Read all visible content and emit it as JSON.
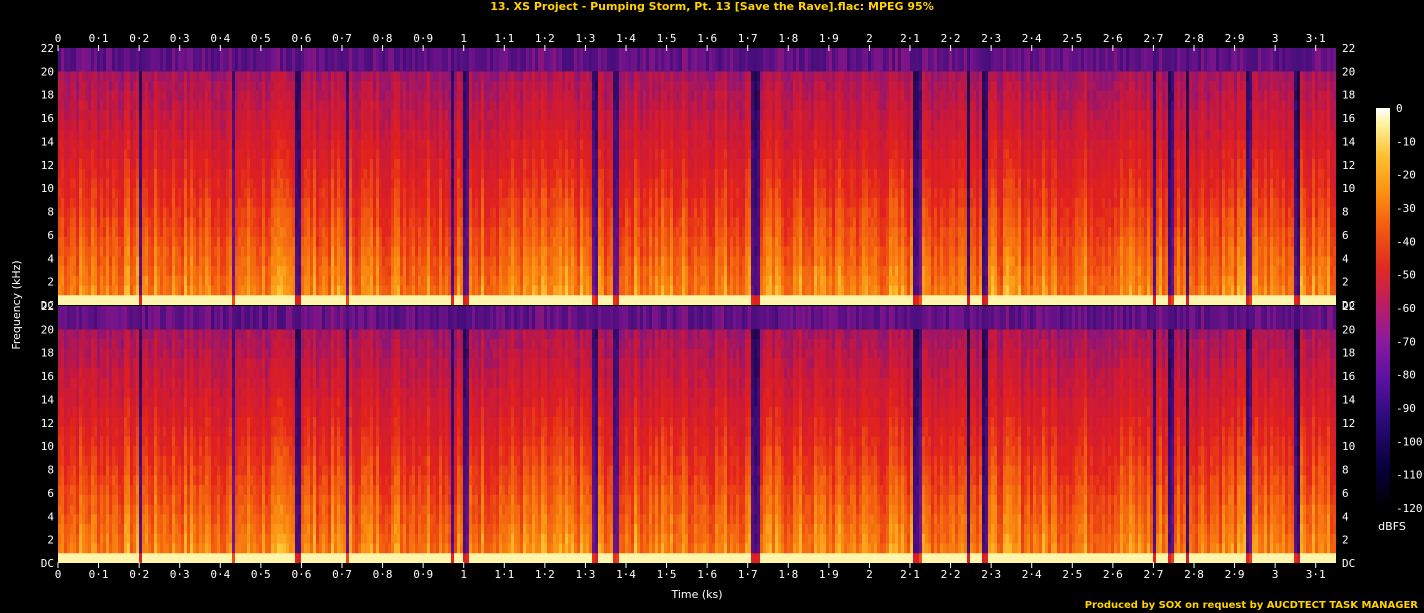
{
  "title": "13. XS Project - Pumping Storm, Pt. 13 [Save the Rave].flac: MPEG 95%",
  "credit": "Produced by SOX on request by AUCDTECT TASK MANAGER",
  "chart_data": {
    "type": "heatmap",
    "title": "13. XS Project - Pumping Storm, Pt. 13 [Save the Rave].flac: MPEG 95%",
    "xlabel": "Time (ks)",
    "ylabel": "Frequency (kHz)",
    "colorbar_label": "dBFS",
    "channels": 2,
    "xlim": [
      0,
      3.15
    ],
    "ylim": [
      0,
      22
    ],
    "x_ticks": [
      "0",
      "0·1",
      "0·2",
      "0·3",
      "0·4",
      "0·5",
      "0·6",
      "0·7",
      "0·8",
      "0·9",
      "1",
      "1·1",
      "1·2",
      "1·3",
      "1·4",
      "1·5",
      "1·6",
      "1·7",
      "1·8",
      "1·9",
      "2",
      "2·1",
      "2·2",
      "2·3",
      "2·4",
      "2·5",
      "2·6",
      "2·7",
      "2·8",
      "2·9",
      "3",
      "3·1"
    ],
    "y_ticks": [
      "DC",
      "2",
      "4",
      "6",
      "8",
      "10",
      "12",
      "14",
      "16",
      "18",
      "20",
      "22"
    ],
    "colorbar_ticks": [
      "0",
      "-10",
      "-20",
      "-30",
      "-40",
      "-50",
      "-60",
      "-70",
      "-80",
      "-90",
      "-100",
      "-110",
      "-120"
    ],
    "cutoff_khz": 20,
    "colors": {
      "low": "#000000",
      "purple": "#4a1090",
      "red": "#e0201c",
      "orange": "#f87010",
      "yellow": "#ffd040",
      "white": "#ffffff"
    }
  }
}
